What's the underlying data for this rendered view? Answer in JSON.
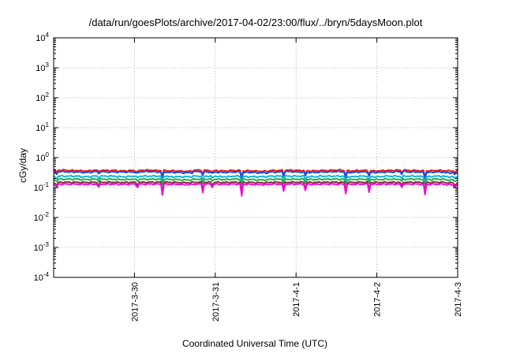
{
  "chart_data": {
    "type": "line",
    "title": "/data/run/goesPlots/archive/2017-04-02/23:00/flux/../bryn/5daysMoon.plot",
    "xlabel": "Coordinated Universal Time (UTC)",
    "ylabel": "cGy/day",
    "yscale": "log",
    "ylim": [
      0.0001,
      10000
    ],
    "xlim": [
      "2017-3-29 00:00",
      "2017-4-3 00:00"
    ],
    "y_ticks": [
      {
        "base": "10",
        "exp": "-4",
        "value": 0.0001
      },
      {
        "base": "10",
        "exp": "-3",
        "value": 0.001
      },
      {
        "base": "10",
        "exp": "-2",
        "value": 0.01
      },
      {
        "base": "10",
        "exp": "-1",
        "value": 0.1
      },
      {
        "base": "10",
        "exp": "0",
        "value": 1
      },
      {
        "base": "10",
        "exp": "1",
        "value": 10
      },
      {
        "base": "10",
        "exp": "2",
        "value": 100
      },
      {
        "base": "10",
        "exp": "3",
        "value": 1000
      },
      {
        "base": "10",
        "exp": "4",
        "value": 10000
      }
    ],
    "x_ticks": [
      {
        "label": "2017-3-30",
        "day": 1
      },
      {
        "label": "2017-3-31",
        "day": 2
      },
      {
        "label": "2017-4-1",
        "day": 3
      },
      {
        "label": "2017-4-2",
        "day": 4
      },
      {
        "label": "2017-4-3",
        "day": 5
      }
    ],
    "grid": true,
    "dip_days": [
      0.03,
      0.55,
      1.03,
      1.35,
      1.85,
      1.97,
      2.33,
      2.85,
      3.12,
      3.62,
      3.9,
      4.3,
      4.6,
      4.97
    ],
    "series": [
      {
        "color": "#e8191a",
        "values": [
          0.38,
          0.37,
          0.36,
          0.38,
          0.37,
          0.36,
          0.37,
          0.38,
          0.37,
          0.36,
          0.35,
          0.38,
          0.37,
          0.36,
          0.37,
          0.36,
          0.35,
          0.37,
          0.38,
          0.37,
          0.36,
          0.37,
          0.38,
          0.36,
          0.37,
          0.36,
          0.37,
          0.38,
          0.37,
          0.36,
          0.37,
          0.36
        ]
      },
      {
        "color": "#1f4fe0",
        "values": [
          0.34,
          0.33,
          0.32,
          0.34,
          0.33,
          0.33,
          0.33,
          0.34,
          0.33,
          0.32,
          0.31,
          0.34,
          0.33,
          0.32,
          0.33,
          0.32,
          0.31,
          0.33,
          0.34,
          0.33,
          0.32,
          0.33,
          0.34,
          0.32,
          0.33,
          0.32,
          0.33,
          0.34,
          0.33,
          0.32,
          0.33,
          0.31
        ]
      },
      {
        "color": "#13b5d6",
        "values": [
          0.24,
          0.24,
          0.23,
          0.24,
          0.24,
          0.23,
          0.24,
          0.24,
          0.24,
          0.23,
          0.23,
          0.24,
          0.24,
          0.23,
          0.24,
          0.23,
          0.23,
          0.24,
          0.24,
          0.24,
          0.23,
          0.24,
          0.24,
          0.23,
          0.24,
          0.23,
          0.24,
          0.24,
          0.24,
          0.23,
          0.24,
          0.23
        ]
      },
      {
        "color": "#21b24a",
        "values": [
          0.19,
          0.19,
          0.185,
          0.19,
          0.19,
          0.185,
          0.19,
          0.19,
          0.19,
          0.185,
          0.18,
          0.19,
          0.19,
          0.185,
          0.19,
          0.185,
          0.18,
          0.19,
          0.19,
          0.19,
          0.185,
          0.19,
          0.19,
          0.185,
          0.19,
          0.185,
          0.19,
          0.19,
          0.19,
          0.185,
          0.19,
          0.18
        ]
      },
      {
        "color": "#8b2a4a",
        "values": [
          0.15,
          0.15,
          0.148,
          0.15,
          0.15,
          0.148,
          0.15,
          0.15,
          0.15,
          0.148,
          0.145,
          0.15,
          0.15,
          0.148,
          0.15,
          0.148,
          0.145,
          0.15,
          0.15,
          0.15,
          0.148,
          0.15,
          0.15,
          0.148,
          0.15,
          0.148,
          0.15,
          0.15,
          0.15,
          0.148,
          0.15,
          0.145
        ]
      },
      {
        "color": "#ee10d6",
        "values": [
          0.13,
          0.13,
          0.128,
          0.13,
          0.13,
          0.128,
          0.13,
          0.13,
          0.13,
          0.128,
          0.125,
          0.13,
          0.13,
          0.128,
          0.13,
          0.128,
          0.125,
          0.13,
          0.13,
          0.13,
          0.128,
          0.13,
          0.13,
          0.128,
          0.13,
          0.128,
          0.13,
          0.13,
          0.13,
          0.128,
          0.13,
          0.125
        ]
      }
    ]
  }
}
